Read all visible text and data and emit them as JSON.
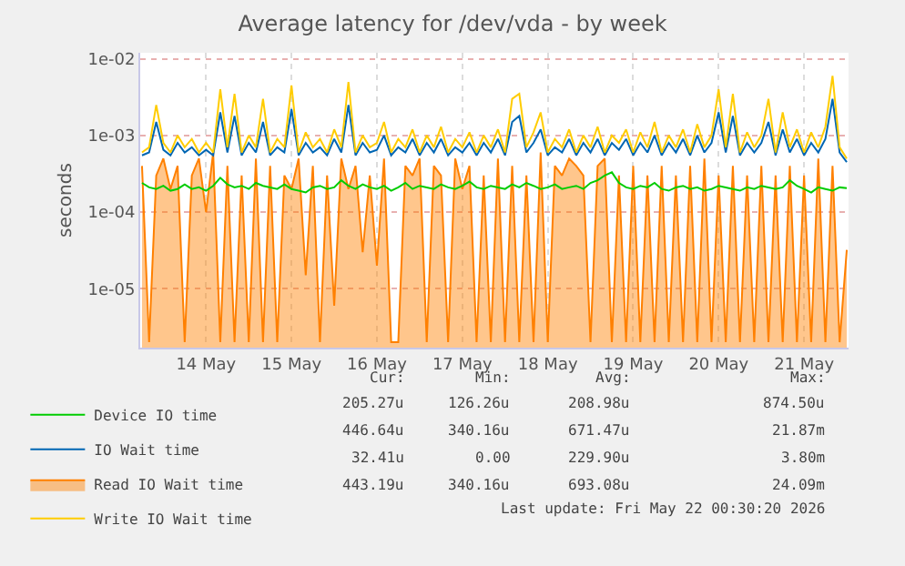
{
  "chart_data": {
    "type": "line",
    "title": "Average latency for /dev/vda - by week",
    "ylabel": "seconds",
    "x": [
      "2026-05-13T18:00",
      "2026-05-13T20:00",
      "2026-05-13T22:00",
      "2026-05-14T00:00",
      "2026-05-14T02:00",
      "2026-05-14T04:00",
      "2026-05-14T06:00",
      "2026-05-14T08:00",
      "2026-05-14T10:00",
      "2026-05-14T12:00",
      "2026-05-14T14:00",
      "2026-05-14T16:00",
      "2026-05-14T18:00",
      "2026-05-14T20:00",
      "2026-05-14T22:00",
      "2026-05-15T00:00",
      "2026-05-15T02:00",
      "2026-05-15T04:00",
      "2026-05-15T06:00",
      "2026-05-15T08:00",
      "2026-05-15T10:00",
      "2026-05-15T12:00",
      "2026-05-15T14:00",
      "2026-05-15T16:00",
      "2026-05-15T18:00",
      "2026-05-15T20:00",
      "2026-05-15T22:00",
      "2026-05-16T00:00",
      "2026-05-16T02:00",
      "2026-05-16T04:00",
      "2026-05-16T06:00",
      "2026-05-16T08:00",
      "2026-05-16T10:00",
      "2026-05-16T12:00",
      "2026-05-16T14:00",
      "2026-05-16T16:00",
      "2026-05-16T18:00",
      "2026-05-16T20:00",
      "2026-05-16T22:00",
      "2026-05-17T00:00",
      "2026-05-17T02:00",
      "2026-05-17T04:00",
      "2026-05-17T06:00",
      "2026-05-17T08:00",
      "2026-05-17T10:00",
      "2026-05-17T12:00",
      "2026-05-17T14:00",
      "2026-05-17T16:00",
      "2026-05-17T18:00",
      "2026-05-17T20:00",
      "2026-05-17T22:00",
      "2026-05-18T00:00",
      "2026-05-18T02:00",
      "2026-05-18T04:00",
      "2026-05-18T06:00",
      "2026-05-18T08:00",
      "2026-05-18T10:00",
      "2026-05-18T12:00",
      "2026-05-18T14:00",
      "2026-05-18T16:00",
      "2026-05-18T18:00",
      "2026-05-18T20:00",
      "2026-05-18T22:00",
      "2026-05-19T00:00",
      "2026-05-19T02:00",
      "2026-05-19T04:00",
      "2026-05-19T06:00",
      "2026-05-19T08:00",
      "2026-05-19T10:00",
      "2026-05-19T12:00",
      "2026-05-19T14:00",
      "2026-05-19T16:00",
      "2026-05-19T18:00",
      "2026-05-19T20:00",
      "2026-05-19T22:00",
      "2026-05-20T00:00",
      "2026-05-20T02:00",
      "2026-05-20T04:00",
      "2026-05-20T06:00",
      "2026-05-20T08:00",
      "2026-05-20T10:00",
      "2026-05-20T12:00",
      "2026-05-20T14:00",
      "2026-05-20T16:00",
      "2026-05-20T18:00",
      "2026-05-20T20:00",
      "2026-05-20T22:00",
      "2026-05-21T00:00",
      "2026-05-21T02:00",
      "2026-05-21T04:00",
      "2026-05-21T06:00",
      "2026-05-21T08:00",
      "2026-05-21T10:00",
      "2026-05-21T12:00",
      "2026-05-21T14:00",
      "2026-05-21T16:00",
      "2026-05-21T18:00",
      "2026-05-21T20:00",
      "2026-05-21T22:00",
      "2026-05-22T00:00"
    ],
    "series": [
      {
        "name": "Device IO time",
        "color": "#00cc00",
        "values": [
          0.00024,
          0.00021,
          0.0002,
          0.00022,
          0.00019,
          0.0002,
          0.00023,
          0.0002,
          0.00021,
          0.00019,
          0.00022,
          0.00028,
          0.00023,
          0.00021,
          0.00022,
          0.0002,
          0.00024,
          0.00022,
          0.00021,
          0.0002,
          0.00023,
          0.0002,
          0.00019,
          0.00018,
          0.00021,
          0.00022,
          0.0002,
          0.00021,
          0.00026,
          0.00022,
          0.0002,
          0.00023,
          0.00021,
          0.0002,
          0.00022,
          0.00019,
          0.00021,
          0.00024,
          0.0002,
          0.00022,
          0.00021,
          0.0002,
          0.00023,
          0.00021,
          0.0002,
          0.00022,
          0.00025,
          0.00021,
          0.0002,
          0.00022,
          0.00021,
          0.0002,
          0.00023,
          0.00021,
          0.00024,
          0.00022,
          0.0002,
          0.00021,
          0.00023,
          0.0002,
          0.00021,
          0.00022,
          0.0002,
          0.00024,
          0.00026,
          0.0003,
          0.00033,
          0.00024,
          0.00021,
          0.0002,
          0.00022,
          0.00021,
          0.00024,
          0.0002,
          0.00019,
          0.00021,
          0.00022,
          0.0002,
          0.00021,
          0.00019,
          0.0002,
          0.00022,
          0.00021,
          0.0002,
          0.00019,
          0.00021,
          0.0002,
          0.00022,
          0.00021,
          0.0002,
          0.00021,
          0.00026,
          0.00022,
          0.0002,
          0.00018,
          0.00021,
          0.0002,
          0.00019,
          0.00021,
          0.000205
        ]
      },
      {
        "name": "IO Wait time",
        "color": "#0066b3",
        "values": [
          0.00055,
          0.0006,
          0.0015,
          0.00065,
          0.00055,
          0.0008,
          0.0006,
          0.0007,
          0.00055,
          0.00065,
          0.00055,
          0.002,
          0.0006,
          0.0018,
          0.00055,
          0.0008,
          0.0006,
          0.0015,
          0.00055,
          0.0007,
          0.0006,
          0.0022,
          0.00055,
          0.0008,
          0.0006,
          0.0007,
          0.00055,
          0.0009,
          0.0006,
          0.0025,
          0.00055,
          0.0008,
          0.0006,
          0.00065,
          0.001,
          0.00055,
          0.0007,
          0.0006,
          0.0009,
          0.00055,
          0.0008,
          0.0006,
          0.0009,
          0.00055,
          0.0007,
          0.0006,
          0.0008,
          0.00055,
          0.0008,
          0.0006,
          0.0009,
          0.00055,
          0.0015,
          0.0018,
          0.0006,
          0.0008,
          0.0012,
          0.00055,
          0.0007,
          0.0006,
          0.0009,
          0.00055,
          0.0008,
          0.0006,
          0.0009,
          0.00055,
          0.0008,
          0.00065,
          0.0009,
          0.00055,
          0.0008,
          0.0006,
          0.001,
          0.00055,
          0.0008,
          0.0006,
          0.0009,
          0.00055,
          0.001,
          0.0006,
          0.0008,
          0.002,
          0.0006,
          0.0018,
          0.00055,
          0.0008,
          0.0006,
          0.0008,
          0.0015,
          0.00055,
          0.0012,
          0.0006,
          0.0009,
          0.00055,
          0.0008,
          0.0006,
          0.0009,
          0.003,
          0.0006,
          0.00045
        ]
      },
      {
        "name": "Read IO Wait time",
        "color": "#ff8000",
        "type": "area",
        "values": [
          0.0004,
          2e-06,
          0.0003,
          0.0005,
          0.0002,
          0.0004,
          2e-06,
          0.0003,
          0.0005,
          0.0001,
          0.0006,
          2e-06,
          0.0004,
          2e-06,
          0.0003,
          2e-06,
          0.0005,
          2e-06,
          0.0004,
          2e-06,
          0.0003,
          0.0002,
          0.0005,
          1.5e-05,
          0.0004,
          2e-06,
          0.0003,
          6e-06,
          0.0005,
          0.0002,
          0.0004,
          3e-05,
          0.0003,
          2e-05,
          0.0005,
          2e-06,
          2e-06,
          0.0004,
          0.0003,
          0.0005,
          2e-06,
          0.0004,
          0.0003,
          2e-06,
          0.0005,
          0.0002,
          0.0004,
          2e-06,
          0.0003,
          2e-06,
          0.0005,
          2e-06,
          0.0004,
          2e-06,
          0.0003,
          2e-06,
          0.0006,
          2e-06,
          0.0004,
          0.0003,
          0.0005,
          0.0004,
          0.0003,
          2e-06,
          0.0004,
          0.0005,
          2e-06,
          0.0003,
          2e-06,
          0.0004,
          2e-06,
          0.0003,
          2e-06,
          0.0004,
          2e-06,
          0.0003,
          2e-06,
          0.0004,
          2e-06,
          0.0005,
          2e-06,
          0.0003,
          2e-06,
          0.0004,
          2e-06,
          0.0003,
          2e-06,
          0.0004,
          2e-06,
          0.0003,
          2e-06,
          0.0004,
          2e-06,
          0.0003,
          2e-06,
          0.0005,
          2e-06,
          0.0004,
          2e-06,
          3.2e-05
        ]
      },
      {
        "name": "Write IO Wait time",
        "color": "#ffcc00",
        "values": [
          0.0006,
          0.0007,
          0.0025,
          0.0008,
          0.0006,
          0.001,
          0.0007,
          0.0009,
          0.0006,
          0.0008,
          0.0006,
          0.004,
          0.0007,
          0.0035,
          0.0006,
          0.001,
          0.0007,
          0.003,
          0.0006,
          0.0009,
          0.0007,
          0.0045,
          0.0006,
          0.0011,
          0.0007,
          0.0009,
          0.0006,
          0.0012,
          0.0007,
          0.005,
          0.0006,
          0.001,
          0.0007,
          0.0008,
          0.0015,
          0.0006,
          0.0009,
          0.0007,
          0.0012,
          0.0006,
          0.001,
          0.0007,
          0.0013,
          0.0006,
          0.0009,
          0.0007,
          0.0011,
          0.0006,
          0.001,
          0.0007,
          0.0012,
          0.0006,
          0.003,
          0.0035,
          0.0007,
          0.0011,
          0.002,
          0.0006,
          0.0009,
          0.0007,
          0.0012,
          0.0006,
          0.001,
          0.0007,
          0.0013,
          0.0006,
          0.001,
          0.0008,
          0.0012,
          0.0006,
          0.0011,
          0.0007,
          0.0015,
          0.0006,
          0.001,
          0.0007,
          0.0012,
          0.0006,
          0.0014,
          0.0007,
          0.001,
          0.004,
          0.0007,
          0.0035,
          0.0006,
          0.0011,
          0.0007,
          0.001,
          0.003,
          0.0006,
          0.002,
          0.0007,
          0.0012,
          0.0006,
          0.0011,
          0.0007,
          0.0013,
          0.006,
          0.0007,
          0.0005
        ]
      }
    ],
    "log": "y",
    "ylim": [
      1.7e-06,
      0.012
    ],
    "yticks": [
      {
        "value": 1e-05,
        "label": "1e-05"
      },
      {
        "value": 0.0001,
        "label": "1e-04"
      },
      {
        "value": 0.001,
        "label": "1e-03"
      },
      {
        "value": 0.01,
        "label": "1e-02"
      }
    ],
    "xlim": [
      "2026-05-13T17:30",
      "2026-05-22T00:30"
    ],
    "xticks": [
      {
        "value": "2026-05-14T12:00",
        "label": "14 May"
      },
      {
        "value": "2026-05-15T12:00",
        "label": "15 May"
      },
      {
        "value": "2026-05-16T12:00",
        "label": "16 May"
      },
      {
        "value": "2026-05-17T12:00",
        "label": "17 May"
      },
      {
        "value": "2026-05-18T12:00",
        "label": "18 May"
      },
      {
        "value": "2026-05-19T12:00",
        "label": "19 May"
      },
      {
        "value": "2026-05-20T12:00",
        "label": "20 May"
      },
      {
        "value": "2026-05-21T12:00",
        "label": "21 May"
      }
    ],
    "grid": true,
    "legend": "bottom",
    "annotations": [
      "Cur:",
      "Min:",
      "Avg:",
      "Max:",
      "205.27u",
      "126.26u",
      "208.98u",
      "874.50u",
      "446.64u",
      "340.16u",
      "671.47u",
      "21.87m",
      "32.41u",
      "0.00",
      "229.90u",
      "3.80m",
      "443.19u",
      "340.16u",
      "693.08u",
      "24.09m",
      "Last update: Fri May 22 00:30:20 2026"
    ]
  }
}
